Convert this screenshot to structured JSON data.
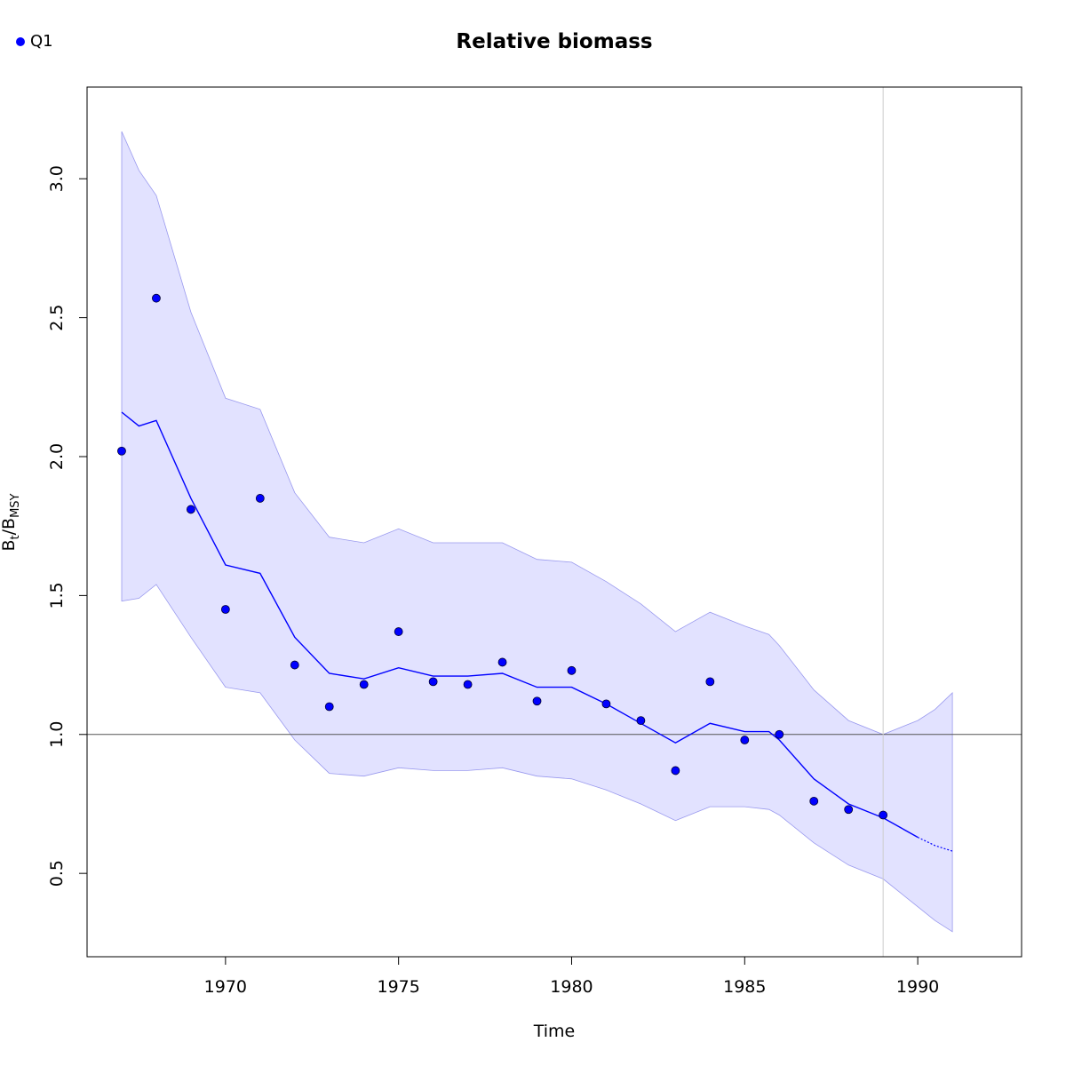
{
  "chart_data": {
    "type": "line",
    "title": "Relative biomass",
    "xlabel": "Time",
    "ylabel": {
      "base1": "B",
      "sub1": "t",
      "sep": "/",
      "base2": "B",
      "sub2": "MSY"
    },
    "legend": {
      "placement": "top-left",
      "entries": [
        {
          "name": "Q1",
          "color": "#0000ff"
        }
      ]
    },
    "xlim": [
      1966.0,
      1993.0
    ],
    "ylim": [
      0.2,
      3.33
    ],
    "x_ticks": [
      1970,
      1975,
      1980,
      1985,
      1990
    ],
    "x_tick_labels": [
      "1970",
      "1975",
      "1980",
      "1985",
      "1990"
    ],
    "y_ticks": [
      0.5,
      1.0,
      1.5,
      2.0,
      2.5,
      3.0
    ],
    "y_tick_labels": [
      "0.5",
      "1.0",
      "1.5",
      "2.0",
      "2.5",
      "3.0"
    ],
    "reference_line_y": 1.0,
    "vertical_line_x": 1989,
    "colors": {
      "line": "#0000ff",
      "band": "#e2e2ff",
      "band_edge": "#9999ee",
      "points": "#0000ff",
      "ref_line": "#555555",
      "vline": "#cccccc"
    },
    "series": [
      {
        "name": "Q1",
        "x": [
          1967,
          1968,
          1969,
          1970,
          1971,
          1972,
          1973,
          1974,
          1975,
          1976,
          1977,
          1978,
          1979,
          1980,
          1981,
          1982,
          1983,
          1984,
          1985,
          1986,
          1987,
          1988,
          1989
        ],
        "values": [
          2.02,
          2.57,
          1.81,
          1.45,
          1.85,
          1.25,
          1.1,
          1.18,
          1.37,
          1.19,
          1.18,
          1.26,
          1.12,
          1.23,
          1.11,
          1.05,
          0.87,
          1.19,
          0.98,
          1.0,
          0.76,
          0.73,
          0.71
        ]
      }
    ],
    "estimate": {
      "x": [
        1967,
        1967.5,
        1968,
        1969,
        1970,
        1971,
        1972,
        1973,
        1974,
        1975,
        1976,
        1977,
        1978,
        1979,
        1980,
        1981,
        1982,
        1983,
        1984,
        1985,
        1985.7,
        1986,
        1987,
        1988,
        1989,
        1990
      ],
      "y": [
        2.16,
        2.11,
        2.13,
        1.85,
        1.61,
        1.58,
        1.35,
        1.22,
        1.2,
        1.24,
        1.21,
        1.21,
        1.22,
        1.17,
        1.17,
        1.11,
        1.04,
        0.97,
        1.04,
        1.01,
        1.01,
        0.98,
        0.84,
        0.75,
        0.7,
        0.63
      ],
      "lower": [
        1.48,
        1.49,
        1.54,
        1.35,
        1.17,
        1.15,
        0.98,
        0.86,
        0.85,
        0.88,
        0.87,
        0.87,
        0.88,
        0.85,
        0.84,
        0.8,
        0.75,
        0.69,
        0.74,
        0.74,
        0.73,
        0.71,
        0.61,
        0.53,
        0.48,
        0.38
      ],
      "upper": [
        3.17,
        3.03,
        2.94,
        2.52,
        2.21,
        2.17,
        1.87,
        1.71,
        1.69,
        1.74,
        1.69,
        1.69,
        1.69,
        1.63,
        1.62,
        1.55,
        1.47,
        1.37,
        1.44,
        1.39,
        1.36,
        1.32,
        1.16,
        1.05,
        1.0,
        1.05
      ]
    },
    "forecast": {
      "x": [
        1990,
        1990.5,
        1991
      ],
      "y": [
        0.63,
        0.6,
        0.58
      ],
      "lower": [
        0.38,
        0.33,
        0.29
      ],
      "upper": [
        1.05,
        1.09,
        1.15
      ]
    }
  }
}
